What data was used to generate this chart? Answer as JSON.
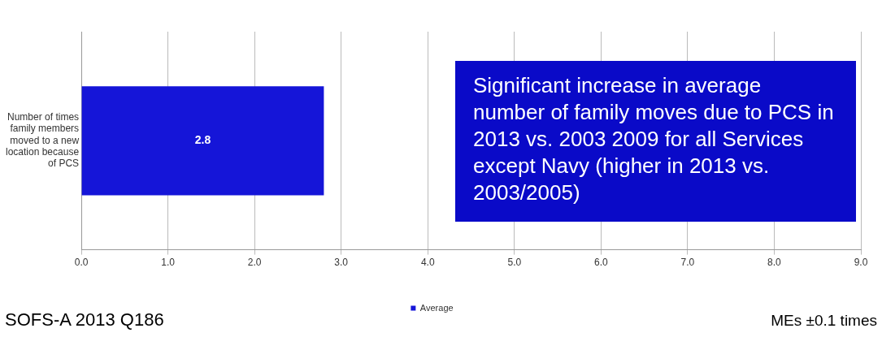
{
  "chart_data": {
    "type": "bar",
    "orientation": "horizontal",
    "categories": [
      "Number of times family members moved to a new location because of PCS"
    ],
    "series": [
      {
        "name": "Average",
        "color": "#1515d8",
        "values": [
          2.8
        ]
      }
    ],
    "xlim": [
      0,
      9
    ],
    "xticks": [
      {
        "value": 0,
        "label": "0.0"
      },
      {
        "value": 1,
        "label": "1.0"
      },
      {
        "value": 2,
        "label": "2.0"
      },
      {
        "value": 3,
        "label": "3.0"
      },
      {
        "value": 4,
        "label": "4.0"
      },
      {
        "value": 5,
        "label": "5.0"
      },
      {
        "value": 6,
        "label": "6.0"
      },
      {
        "value": 7,
        "label": "7.0"
      },
      {
        "value": 8,
        "label": "8.0"
      },
      {
        "value": 9,
        "label": "9.0"
      }
    ],
    "grid": "x",
    "legend": "bottom",
    "data_labels": true,
    "annotations": [
      "Significant increase in average number of family moves due to PCS in 2013 vs. 2003 2009 for all Services except Navy (higher in 2013 vs. 2003/2005)",
      "SOFS-A 2013 Q186",
      "MEs ±0.1 times"
    ]
  }
}
